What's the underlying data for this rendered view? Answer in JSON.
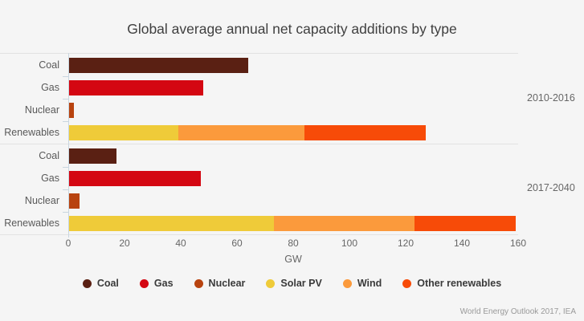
{
  "title": "Global average annual net capacity additions by type",
  "source": "World Energy Outlook 2017, IEA",
  "style": {
    "background": "#f5f5f5",
    "axis_line_color": "#c9d6e0",
    "grid_line_color": "#e2e2e2",
    "title_color": "#3f3f3f",
    "label_color": "#595959",
    "tick_color": "#666666",
    "footer_color": "#999999"
  },
  "chart_data": {
    "type": "bar",
    "orientation": "horizontal",
    "title": "Global average annual net capacity additions by type",
    "xlabel": "GW",
    "xlim": [
      0,
      160
    ],
    "xticks": [
      0,
      20,
      40,
      60,
      80,
      100,
      120,
      140,
      160
    ],
    "grid": false,
    "legend_position": "bottom",
    "categories": [
      "Coal",
      "Gas",
      "Nuclear",
      "Renewables"
    ],
    "series_colors": {
      "Coal": "#5a2013",
      "Gas": "#d40712",
      "Nuclear": "#b8430f",
      "Solar PV": "#efcb39",
      "Wind": "#fb9a3c",
      "Other renewables": "#f74b08"
    },
    "legend": [
      "Coal",
      "Gas",
      "Nuclear",
      "Solar PV",
      "Wind",
      "Other renewables"
    ],
    "groups": [
      {
        "label": "2010-2016",
        "rows": [
          {
            "category": "Coal",
            "segments": [
              {
                "series": "Coal",
                "value": 64
              }
            ]
          },
          {
            "category": "Gas",
            "segments": [
              {
                "series": "Gas",
                "value": 48
              }
            ]
          },
          {
            "category": "Nuclear",
            "segments": [
              {
                "series": "Nuclear",
                "value": 2
              }
            ]
          },
          {
            "category": "Renewables",
            "segments": [
              {
                "series": "Solar PV",
                "value": 39
              },
              {
                "series": "Wind",
                "value": 45
              },
              {
                "series": "Other renewables",
                "value": 43
              }
            ]
          }
        ]
      },
      {
        "label": "2017-2040",
        "rows": [
          {
            "category": "Coal",
            "segments": [
              {
                "series": "Coal",
                "value": 17
              }
            ]
          },
          {
            "category": "Gas",
            "segments": [
              {
                "series": "Gas",
                "value": 47
              }
            ]
          },
          {
            "category": "Nuclear",
            "segments": [
              {
                "series": "Nuclear",
                "value": 4
              }
            ]
          },
          {
            "category": "Renewables",
            "segments": [
              {
                "series": "Solar PV",
                "value": 73
              },
              {
                "series": "Wind",
                "value": 50
              },
              {
                "series": "Other renewables",
                "value": 36
              }
            ]
          }
        ]
      }
    ]
  }
}
